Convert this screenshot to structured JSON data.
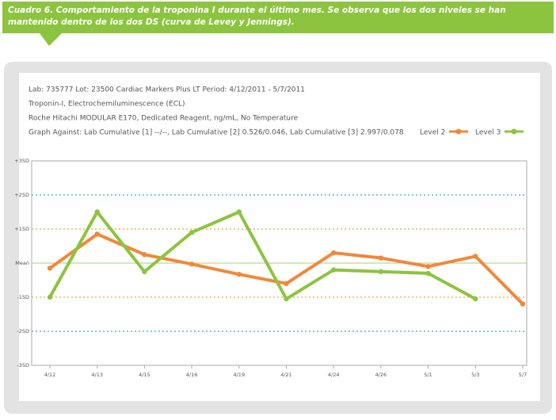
{
  "caption": "Cuadro 6. Comportamiento de la troponina I durante el último mes. Se observa que los dos niveles se han mantenido dentro de los dos DS (curva de Levey y Jennings).",
  "header_lines": [
    "Lab: 735777  Lot: 23500 Cardiac Markers Plus LT  Period: 4/12/2011 - 5/7/2011",
    "Troponin-I, Electrochemiluminescence (ECL)",
    "Roche Hitachi MODULAR E170, Dedicated Reagent, ng/mL, No Temperature",
    "Graph Against: Lab Cumulative [1] --/--, Lab Cumulative [2] 0.526/0.046, Lab Cumulative [3] 2.997/0.078"
  ],
  "chart_data": {
    "type": "line",
    "categories": [
      "4/12",
      "4/13",
      "4/15",
      "4/16",
      "4/19",
      "4/21",
      "4/24",
      "4/26",
      "5/1",
      "5/3",
      "5/7"
    ],
    "series": [
      {
        "name": "Level 2",
        "color": "#f0883a",
        "values": [
          -0.15,
          0.85,
          0.25,
          -0.03,
          -0.33,
          -0.6,
          0.3,
          0.15,
          -0.1,
          0.2,
          -1.2
        ]
      },
      {
        "name": "Level 3",
        "color": "#8cc43f",
        "values": [
          -1.0,
          1.5,
          -0.25,
          0.9,
          1.5,
          -1.05,
          -0.2,
          -0.25,
          -0.3,
          -1.05,
          null
        ]
      }
    ],
    "ylim": [
      -3,
      3
    ],
    "yticks": [
      {
        "value": 3,
        "label": "+3SD"
      },
      {
        "value": 2,
        "label": "+2SD"
      },
      {
        "value": 1,
        "label": "+1SD"
      },
      {
        "value": 0,
        "label": "Mean"
      },
      {
        "value": -1,
        "label": "-1SD"
      },
      {
        "value": -2,
        "label": "-2SD"
      },
      {
        "value": -3,
        "label": "-3SD"
      }
    ],
    "legend": "top-right"
  }
}
